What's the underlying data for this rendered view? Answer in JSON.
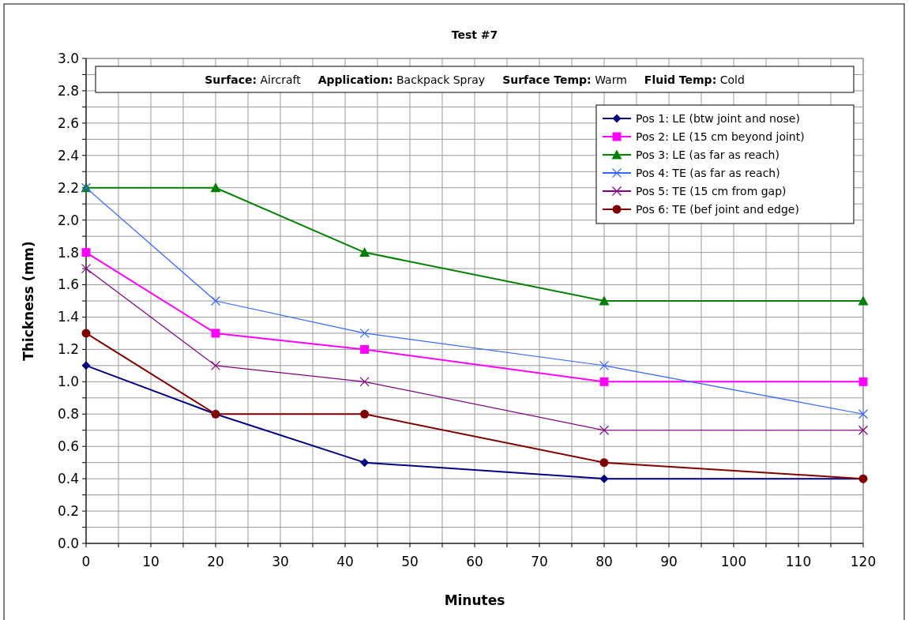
{
  "chart_data": {
    "type": "line",
    "title": "Test #7",
    "xlabel": "Minutes",
    "ylabel": "Thickness (mm)",
    "annotations": [
      "Surface: Aircraft",
      "Application: Backpack Spray",
      "Surface Temp: Warm",
      "Fluid Temp: Cold"
    ],
    "x": [
      0,
      20,
      43,
      80,
      120
    ],
    "series": [
      {
        "name": "Pos 1: LE (btw joint and nose)",
        "color": "#000080",
        "marker": "diamond",
        "values": [
          1.1,
          0.8,
          0.5,
          0.4,
          0.4
        ]
      },
      {
        "name": "Pos 2: LE (15 cm beyond joint)",
        "color": "#ff00ff",
        "marker": "square",
        "values": [
          1.8,
          1.3,
          1.2,
          1.0,
          1.0
        ]
      },
      {
        "name": "Pos 3: LE (as far as reach)",
        "color": "#008000",
        "marker": "triangle",
        "values": [
          2.2,
          2.2,
          1.8,
          1.5,
          1.5
        ]
      },
      {
        "name": "Pos 4: TE (as far as reach)",
        "color": "#3366ff",
        "marker": "cross",
        "values": [
          2.2,
          1.5,
          1.3,
          1.1,
          0.8
        ]
      },
      {
        "name": "Pos 5: TE (15 cm from gap)",
        "color": "#800080",
        "marker": "cross",
        "values": [
          1.7,
          1.1,
          1.0,
          0.7,
          0.7
        ]
      },
      {
        "name": "Pos 6: TE (bef joint and edge)",
        "color": "#800000",
        "marker": "circle",
        "values": [
          1.3,
          0.8,
          0.8,
          0.5,
          0.4
        ]
      }
    ],
    "xlim": [
      0,
      120
    ],
    "xticks": [
      0,
      {
        "value": 5,
        "label": null
      },
      10,
      {
        "value": 15,
        "label": null
      },
      20,
      {
        "value": 25,
        "label": null
      },
      30,
      {
        "value": 35,
        "label": null
      },
      40,
      {
        "value": 45,
        "label": null
      },
      50,
      {
        "value": 55,
        "label": null
      },
      60,
      {
        "value": 65,
        "label": null
      },
      70,
      {
        "value": 75,
        "label": null
      },
      80,
      {
        "value": 85,
        "label": null
      },
      90,
      {
        "value": 95,
        "label": null
      },
      100,
      {
        "value": 105,
        "label": null
      },
      110,
      {
        "value": 115,
        "label": null
      },
      120
    ],
    "ylim": [
      0,
      3
    ],
    "yticks": [
      {
        "value": 0,
        "label": "0.0"
      },
      {
        "value": 0.1,
        "label": null
      },
      0.2,
      {
        "value": 0.3,
        "label": null
      },
      0.4,
      {
        "value": 0.5,
        "label": null
      },
      0.6,
      {
        "value": 0.7,
        "label": null
      },
      0.8,
      {
        "value": 0.9,
        "label": null
      },
      {
        "value": 1,
        "label": "1.0"
      },
      {
        "value": 1.1,
        "label": null
      },
      1.2,
      {
        "value": 1.3,
        "label": null
      },
      1.4,
      {
        "value": 1.5,
        "label": null
      },
      1.6,
      {
        "value": 1.7,
        "label": null
      },
      1.8,
      {
        "value": 1.9,
        "label": null
      },
      {
        "value": 2,
        "label": "2.0"
      },
      {
        "value": 2.1,
        "label": null
      },
      2.2,
      {
        "value": 2.3,
        "label": null
      },
      2.4,
      {
        "value": 2.5,
        "label": null
      },
      2.6,
      {
        "value": 2.7,
        "label": null
      },
      2.8,
      {
        "value": 2.9,
        "label": null
      },
      {
        "value": 3,
        "label": "3.0"
      }
    ],
    "grid": true,
    "legend": "top right"
  }
}
